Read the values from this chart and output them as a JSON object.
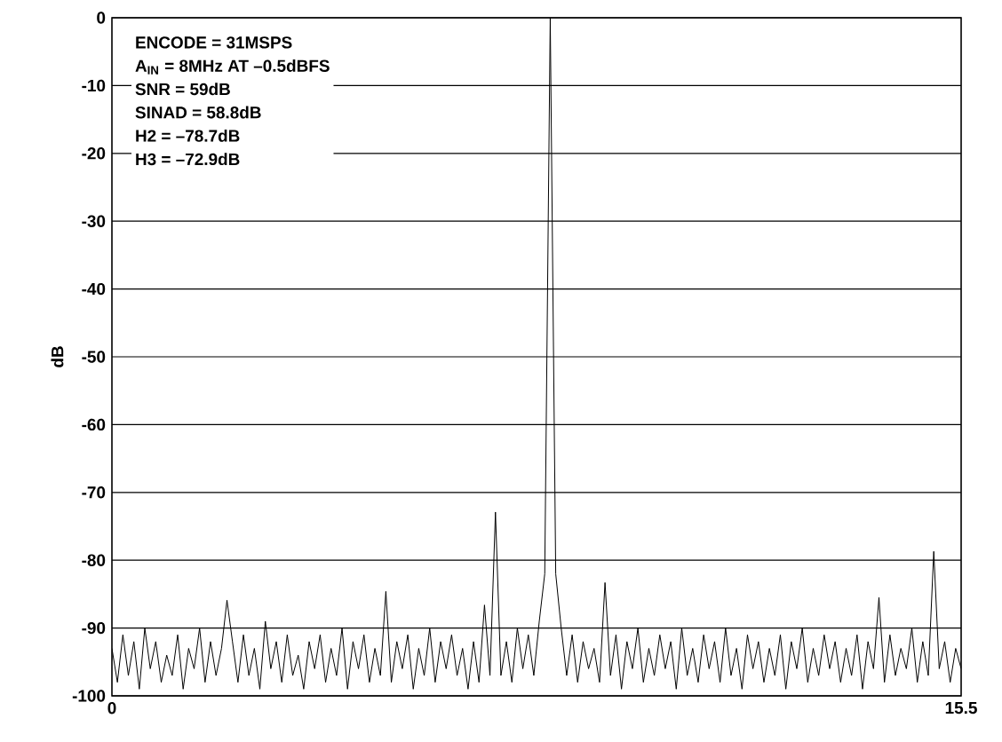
{
  "chart_data": {
    "type": "line",
    "ylabel": "dB",
    "annotations": [
      "ENCODE = 31MSPS",
      "A$_{IN}$ = 8MHz AT –0.5dBFS",
      "SNR = 59dB",
      "SINAD = 58.8dB",
      "H2 = –78.7dB",
      "H3 = –72.9dB"
    ],
    "xlim": [
      0,
      15.5
    ],
    "xticks": [
      0,
      15.5
    ],
    "ylim": [
      -100,
      0
    ],
    "yticks": [
      0,
      -10,
      -20,
      -30,
      -40,
      -50,
      -60,
      -70,
      -80,
      -90,
      -100
    ],
    "grid": "y",
    "marker": "none",
    "line_style": "solid",
    "series": [
      {
        "color": "#000000",
        "x": [
          0.0,
          0.1,
          0.2,
          0.3,
          0.4,
          0.5,
          0.6,
          0.7,
          0.8,
          0.9,
          1.0,
          1.1,
          1.2,
          1.3,
          1.4,
          1.5,
          1.6,
          1.7,
          1.8,
          1.9,
          2.0,
          2.1,
          2.2,
          2.3,
          2.4,
          2.5,
          2.6,
          2.7,
          2.8,
          2.9,
          3.0,
          3.1,
          3.2,
          3.3,
          3.4,
          3.5,
          3.6,
          3.7,
          3.8,
          3.9,
          4.0,
          4.1,
          4.2,
          4.3,
          4.4,
          4.5,
          4.6,
          4.7,
          4.8,
          4.9,
          5.0,
          5.1,
          5.2,
          5.3,
          5.4,
          5.5,
          5.6,
          5.7,
          5.8,
          5.9,
          6.0,
          6.1,
          6.2,
          6.3,
          6.4,
          6.5,
          6.6,
          6.7,
          6.8,
          6.9,
          7.0,
          7.1,
          7.2,
          7.3,
          7.4,
          7.5,
          7.6,
          7.7,
          7.8,
          7.9,
          8.0,
          8.1,
          8.2,
          8.3,
          8.4,
          8.5,
          8.6,
          8.7,
          8.8,
          8.9,
          9.0,
          9.1,
          9.2,
          9.3,
          9.4,
          9.5,
          9.6,
          9.7,
          9.8,
          9.9,
          10.0,
          10.1,
          10.2,
          10.3,
          10.4,
          10.5,
          10.6,
          10.7,
          10.8,
          10.9,
          11.0,
          11.1,
          11.2,
          11.3,
          11.4,
          11.5,
          11.6,
          11.7,
          11.8,
          11.9,
          12.0,
          12.1,
          12.2,
          12.3,
          12.4,
          12.5,
          12.6,
          12.7,
          12.8,
          12.9,
          13.0,
          13.1,
          13.2,
          13.3,
          13.4,
          13.5,
          13.6,
          13.7,
          13.8,
          13.9,
          14.0,
          14.1,
          14.2,
          14.3,
          14.4,
          14.5,
          14.6,
          14.7,
          14.8,
          14.9,
          15.0,
          15.1,
          15.2,
          15.3,
          15.4,
          15.5
        ],
        "values": [
          -93,
          -98,
          -91,
          -97,
          -92,
          -99,
          -90,
          -96,
          -92,
          -98,
          -94,
          -97,
          -91,
          -99,
          -93,
          -96,
          -90,
          -98,
          -92,
          -97,
          -93,
          -85.9,
          -92,
          -98,
          -91,
          -97,
          -93,
          -99,
          -89,
          -96,
          -92,
          -98,
          -91,
          -97,
          -94,
          -99,
          -92,
          -96,
          -91,
          -98,
          -93,
          -97,
          -90,
          -99,
          -92,
          -96,
          -91,
          -98,
          -93,
          -97,
          -84.6,
          -98,
          -92,
          -96,
          -91,
          -99,
          -93,
          -97,
          -90,
          -98,
          -92,
          -96,
          -91,
          -97,
          -93,
          -99,
          -92,
          -98,
          -86.6,
          -97,
          -72.9,
          -97,
          -92,
          -98,
          -90,
          -96,
          -91,
          -97,
          -89,
          -82,
          0,
          -82,
          -90,
          -97,
          -91,
          -98,
          -92,
          -96,
          -93,
          -98,
          -83.3,
          -97,
          -91,
          -99,
          -92,
          -96,
          -90,
          -98,
          -93,
          -97,
          -91,
          -96,
          -92,
          -99,
          -90,
          -97,
          -93,
          -98,
          -91,
          -96,
          -92,
          -98,
          -90,
          -97,
          -93,
          -99,
          -91,
          -96,
          -92,
          -98,
          -93,
          -97,
          -91,
          -99,
          -92,
          -96,
          -90,
          -98,
          -93,
          -97,
          -91,
          -96,
          -92,
          -98,
          -93,
          -97,
          -91,
          -99,
          -92,
          -96,
          -85.5,
          -98,
          -91,
          -97,
          -93,
          -96,
          -90,
          -98,
          -92,
          -97,
          -78.7,
          -96,
          -92,
          -98,
          -93,
          -96
        ]
      }
    ]
  }
}
